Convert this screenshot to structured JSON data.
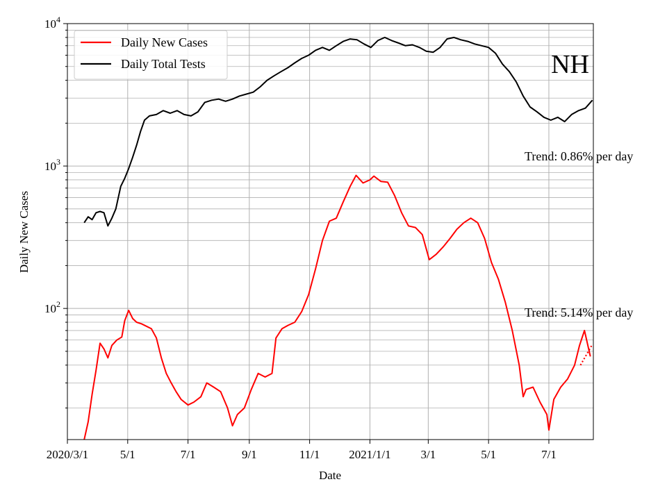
{
  "chart_data": {
    "type": "line",
    "title": "",
    "region_label": "NH",
    "xlabel": "Date",
    "ylabel": "Daily New Cases",
    "y_scale": "log",
    "ylim": [
      12,
      10000
    ],
    "y_ticks": [
      {
        "base": "10",
        "exp": "2",
        "value": 100
      },
      {
        "base": "10",
        "exp": "3",
        "value": 1000
      },
      {
        "base": "10",
        "exp": "4",
        "value": 10000
      }
    ],
    "xlim": [
      "2020-03-01",
      "2021-08-15"
    ],
    "x_ticks": [
      {
        "label": "2020/3/1",
        "date": "2020-03-01"
      },
      {
        "label": "5/1",
        "date": "2020-05-01"
      },
      {
        "label": "7/1",
        "date": "2020-07-01"
      },
      {
        "label": "9/1",
        "date": "2020-09-01"
      },
      {
        "label": "11/1",
        "date": "2020-11-01"
      },
      {
        "label": "2021/1/1",
        "date": "2021-01-01"
      },
      {
        "label": "3/1",
        "date": "2021-03-01"
      },
      {
        "label": "5/1",
        "date": "2021-05-01"
      },
      {
        "label": "7/1",
        "date": "2021-07-01"
      }
    ],
    "grid": true,
    "legend_position": "top-left",
    "series": [
      {
        "name": "Daily New Cases",
        "color": "#ff0000",
        "points": [
          [
            "2020-03-18",
            12
          ],
          [
            "2020-03-22",
            16
          ],
          [
            "2020-03-26",
            25
          ],
          [
            "2020-03-30",
            37
          ],
          [
            "2020-04-03",
            57
          ],
          [
            "2020-04-07",
            52
          ],
          [
            "2020-04-11",
            45
          ],
          [
            "2020-04-15",
            55
          ],
          [
            "2020-04-20",
            60
          ],
          [
            "2020-04-25",
            63
          ],
          [
            "2020-04-28",
            82
          ],
          [
            "2020-05-02",
            97
          ],
          [
            "2020-05-06",
            85
          ],
          [
            "2020-05-10",
            80
          ],
          [
            "2020-05-15",
            78
          ],
          [
            "2020-05-20",
            75
          ],
          [
            "2020-05-25",
            72
          ],
          [
            "2020-05-30",
            62
          ],
          [
            "2020-06-04",
            45
          ],
          [
            "2020-06-09",
            35
          ],
          [
            "2020-06-14",
            30
          ],
          [
            "2020-06-19",
            26
          ],
          [
            "2020-06-24",
            23
          ],
          [
            "2020-07-01",
            21
          ],
          [
            "2020-07-07",
            22
          ],
          [
            "2020-07-14",
            24
          ],
          [
            "2020-07-20",
            30
          ],
          [
            "2020-07-27",
            28
          ],
          [
            "2020-08-03",
            26
          ],
          [
            "2020-08-10",
            20
          ],
          [
            "2020-08-15",
            15
          ],
          [
            "2020-08-20",
            18
          ],
          [
            "2020-08-27",
            20
          ],
          [
            "2020-09-03",
            27
          ],
          [
            "2020-09-10",
            35
          ],
          [
            "2020-09-17",
            33
          ],
          [
            "2020-09-24",
            35
          ],
          [
            "2020-09-28",
            62
          ],
          [
            "2020-10-04",
            72
          ],
          [
            "2020-10-10",
            76
          ],
          [
            "2020-10-17",
            80
          ],
          [
            "2020-10-24",
            95
          ],
          [
            "2020-10-31",
            125
          ],
          [
            "2020-11-07",
            190
          ],
          [
            "2020-11-14",
            300
          ],
          [
            "2020-11-21",
            410
          ],
          [
            "2020-11-28",
            430
          ],
          [
            "2020-12-05",
            560
          ],
          [
            "2020-12-12",
            720
          ],
          [
            "2020-12-18",
            860
          ],
          [
            "2020-12-25",
            760
          ],
          [
            "2021-01-01",
            800
          ],
          [
            "2021-01-05",
            850
          ],
          [
            "2021-01-12",
            780
          ],
          [
            "2021-01-19",
            770
          ],
          [
            "2021-01-26",
            620
          ],
          [
            "2021-02-02",
            470
          ],
          [
            "2021-02-09",
            380
          ],
          [
            "2021-02-16",
            370
          ],
          [
            "2021-02-23",
            330
          ],
          [
            "2021-03-02",
            220
          ],
          [
            "2021-03-09",
            240
          ],
          [
            "2021-03-16",
            270
          ],
          [
            "2021-03-23",
            310
          ],
          [
            "2021-03-30",
            360
          ],
          [
            "2021-04-06",
            400
          ],
          [
            "2021-04-13",
            430
          ],
          [
            "2021-04-20",
            400
          ],
          [
            "2021-04-27",
            310
          ],
          [
            "2021-05-04",
            210
          ],
          [
            "2021-05-11",
            160
          ],
          [
            "2021-05-18",
            110
          ],
          [
            "2021-05-25",
            70
          ],
          [
            "2021-06-01",
            40
          ],
          [
            "2021-06-05",
            24
          ],
          [
            "2021-06-08",
            27
          ],
          [
            "2021-06-15",
            28
          ],
          [
            "2021-06-22",
            22
          ],
          [
            "2021-06-29",
            18
          ],
          [
            "2021-07-01",
            14
          ],
          [
            "2021-07-06",
            23
          ],
          [
            "2021-07-13",
            28
          ],
          [
            "2021-07-20",
            32
          ],
          [
            "2021-07-27",
            40
          ],
          [
            "2021-08-01",
            55
          ],
          [
            "2021-08-06",
            70
          ],
          [
            "2021-08-12",
            46
          ]
        ]
      },
      {
        "name": "Daily Total Tests",
        "color": "#000000",
        "points": [
          [
            "2020-03-18",
            400
          ],
          [
            "2020-03-22",
            440
          ],
          [
            "2020-03-26",
            420
          ],
          [
            "2020-03-30",
            470
          ],
          [
            "2020-04-03",
            480
          ],
          [
            "2020-04-07",
            470
          ],
          [
            "2020-04-11",
            380
          ],
          [
            "2020-04-15",
            430
          ],
          [
            "2020-04-19",
            500
          ],
          [
            "2020-04-24",
            720
          ],
          [
            "2020-04-28",
            820
          ],
          [
            "2020-05-02",
            960
          ],
          [
            "2020-05-06",
            1150
          ],
          [
            "2020-05-10",
            1400
          ],
          [
            "2020-05-14",
            1750
          ],
          [
            "2020-05-18",
            2100
          ],
          [
            "2020-05-23",
            2250
          ],
          [
            "2020-05-30",
            2300
          ],
          [
            "2020-06-06",
            2450
          ],
          [
            "2020-06-13",
            2350
          ],
          [
            "2020-06-20",
            2450
          ],
          [
            "2020-06-27",
            2300
          ],
          [
            "2020-07-04",
            2250
          ],
          [
            "2020-07-11",
            2400
          ],
          [
            "2020-07-18",
            2800
          ],
          [
            "2020-07-25",
            2900
          ],
          [
            "2020-08-01",
            2950
          ],
          [
            "2020-08-08",
            2850
          ],
          [
            "2020-08-15",
            2950
          ],
          [
            "2020-08-22",
            3100
          ],
          [
            "2020-08-29",
            3200
          ],
          [
            "2020-09-05",
            3300
          ],
          [
            "2020-09-12",
            3600
          ],
          [
            "2020-09-19",
            4000
          ],
          [
            "2020-09-26",
            4300
          ],
          [
            "2020-10-03",
            4600
          ],
          [
            "2020-10-10",
            4900
          ],
          [
            "2020-10-17",
            5300
          ],
          [
            "2020-10-24",
            5700
          ],
          [
            "2020-10-31",
            6000
          ],
          [
            "2020-11-07",
            6500
          ],
          [
            "2020-11-14",
            6800
          ],
          [
            "2020-11-21",
            6500
          ],
          [
            "2020-11-28",
            7000
          ],
          [
            "2020-12-05",
            7500
          ],
          [
            "2020-12-12",
            7800
          ],
          [
            "2020-12-19",
            7700
          ],
          [
            "2020-12-26",
            7200
          ],
          [
            "2021-01-02",
            6800
          ],
          [
            "2021-01-09",
            7600
          ],
          [
            "2021-01-16",
            8000
          ],
          [
            "2021-01-23",
            7600
          ],
          [
            "2021-01-30",
            7300
          ],
          [
            "2021-02-06",
            7000
          ],
          [
            "2021-02-13",
            7100
          ],
          [
            "2021-02-20",
            6800
          ],
          [
            "2021-02-27",
            6400
          ],
          [
            "2021-03-06",
            6300
          ],
          [
            "2021-03-13",
            6800
          ],
          [
            "2021-03-20",
            7800
          ],
          [
            "2021-03-27",
            8000
          ],
          [
            "2021-04-03",
            7700
          ],
          [
            "2021-04-10",
            7500
          ],
          [
            "2021-04-17",
            7200
          ],
          [
            "2021-04-24",
            7000
          ],
          [
            "2021-05-01",
            6800
          ],
          [
            "2021-05-08",
            6200
          ],
          [
            "2021-05-15",
            5200
          ],
          [
            "2021-05-22",
            4600
          ],
          [
            "2021-05-29",
            3900
          ],
          [
            "2021-06-05",
            3100
          ],
          [
            "2021-06-12",
            2600
          ],
          [
            "2021-06-19",
            2400
          ],
          [
            "2021-06-26",
            2200
          ],
          [
            "2021-07-03",
            2100
          ],
          [
            "2021-07-10",
            2200
          ],
          [
            "2021-07-17",
            2050
          ],
          [
            "2021-07-24",
            2300
          ],
          [
            "2021-07-31",
            2450
          ],
          [
            "2021-08-07",
            2550
          ],
          [
            "2021-08-14",
            2900
          ]
        ]
      }
    ],
    "trend_lines": [
      {
        "series": "Daily New Cases",
        "color": "#ff0000",
        "style": "dotted",
        "points": [
          [
            "2021-08-02",
            40
          ],
          [
            "2021-08-14",
            56
          ]
        ]
      }
    ],
    "annotations": [
      {
        "text": "Trend: 0.86% per day",
        "anchor": "tests"
      },
      {
        "text": "Trend: 5.14% per day",
        "anchor": "cases"
      }
    ]
  }
}
